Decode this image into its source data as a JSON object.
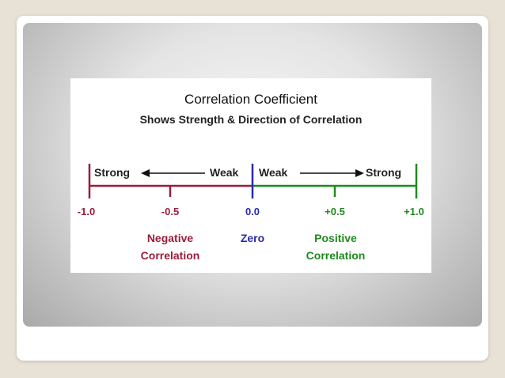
{
  "diagram": {
    "title": "Correlation Coefficient",
    "subtitle": "Shows Strength & Direction of Correlation",
    "left_strong": "Strong",
    "left_weak": "Weak",
    "right_weak": "Weak",
    "right_strong": "Strong",
    "ticks": {
      "neg1": "-1.0",
      "neg05": "-0.5",
      "zero": "0.0",
      "pos05": "+0.5",
      "pos1": "+1.0"
    },
    "regions": {
      "negative_line1": "Negative",
      "negative_line2": "Correlation",
      "zero": "Zero",
      "positive_line1": "Positive",
      "positive_line2": "Correlation"
    },
    "colors": {
      "negative": "#9b1c3c",
      "zero": "#2a2aa8",
      "positive": "#1f8a1f"
    }
  }
}
